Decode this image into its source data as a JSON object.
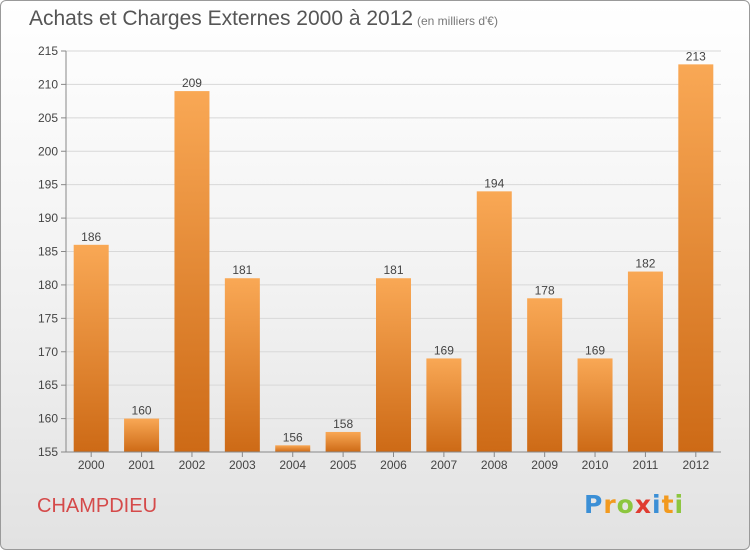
{
  "header": {
    "title": "Achats et Charges Externes 2000 à 2012",
    "units": "(en milliers d'€)"
  },
  "footer": {
    "commune": "CHAMPDIEU",
    "logo": {
      "letters": [
        "P",
        "r",
        "o",
        "x",
        "i",
        "t",
        "i"
      ],
      "colors": [
        "#3b8fd6",
        "#f29a1f",
        "#8cc63e",
        "#e03c31",
        "#3b8fd6",
        "#f29a1f",
        "#8cc63e"
      ]
    }
  },
  "chart_data": {
    "type": "bar",
    "title": "Achats et Charges Externes 2000 à 2012",
    "subtitle": "(en milliers d'€)",
    "categories": [
      "2000",
      "2001",
      "2002",
      "2003",
      "2004",
      "2005",
      "2006",
      "2007",
      "2008",
      "2009",
      "2010",
      "2011",
      "2012"
    ],
    "values": [
      186,
      160,
      209,
      181,
      156,
      158,
      181,
      169,
      194,
      178,
      169,
      182,
      213
    ],
    "ylim": [
      155,
      215
    ],
    "yticks": [
      155,
      160,
      165,
      170,
      175,
      180,
      185,
      190,
      195,
      200,
      205,
      210,
      215
    ],
    "grid": true,
    "legend": "none",
    "colors": {
      "bar_top": "#f9a855",
      "bar_bottom": "#cd6a16",
      "grid": "#d8d8d8",
      "axis": "#888888",
      "text": "#444444"
    }
  }
}
